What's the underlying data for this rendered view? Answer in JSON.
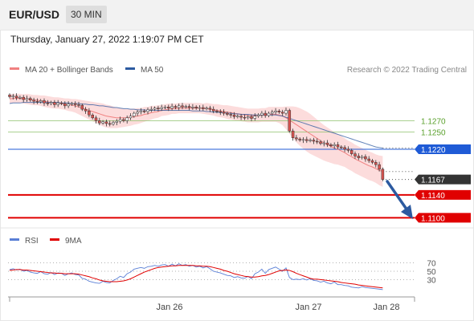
{
  "header": {
    "symbol": "EUR/USD",
    "timeframe": "30 MIN"
  },
  "datetime": "Thursday, January 27, 2022 1:19:07 PM CET",
  "legend": [
    {
      "label": "MA 20 + Bollinger Bands",
      "color": "#f08080"
    },
    {
      "label": "MA 50",
      "color": "#2c5aa0"
    }
  ],
  "credit": "Research © 2022 Trading Central",
  "rsi_legend": [
    {
      "label": "RSI",
      "color": "#5a7fd6"
    },
    {
      "label": "9MA",
      "color": "#e00000"
    }
  ],
  "colors": {
    "up_candle": "#ffffff",
    "down_candle": "#d9534f",
    "wick": "#333333",
    "band_fill": "#fbd0d0",
    "ma20": "#f08080",
    "ma50": "#2c5aa0",
    "support_red": "#e00000",
    "resistance_green": "#8dc26b",
    "pivot_blue": "#1f5bd6",
    "last_price_bg": "#333333",
    "arrow": "#2c5aa0"
  },
  "chart_data": [
    {
      "type": "candlestick",
      "title": "EUR/USD",
      "x_ticks": [
        "Jan 26",
        "Jan 27",
        "Jan 28"
      ],
      "ylim": [
        1.1085,
        1.1345
      ],
      "levels": [
        {
          "value": 1.127,
          "label": "1.1270",
          "style": "green"
        },
        {
          "value": 1.125,
          "label": "1.1250",
          "style": "green"
        },
        {
          "value": 1.122,
          "label": "1.1220",
          "style": "blue"
        },
        {
          "value": 1.1167,
          "label": "1.1167",
          "style": "last"
        },
        {
          "value": 1.114,
          "label": "1.1140",
          "style": "red"
        },
        {
          "value": 1.11,
          "label": "1.1100",
          "style": "red"
        }
      ],
      "close": [
        1.1312,
        1.1313,
        1.131,
        1.1311,
        1.1307,
        1.1309,
        1.1306,
        1.1304,
        1.1303,
        1.1305,
        1.1301,
        1.13,
        1.1302,
        1.1298,
        1.1301,
        1.13,
        1.1296,
        1.1299,
        1.13,
        1.1298,
        1.1297,
        1.129,
        1.1287,
        1.128,
        1.1275,
        1.127,
        1.1266,
        1.1268,
        1.1265,
        1.1264,
        1.1267,
        1.1269,
        1.1272,
        1.127,
        1.1275,
        1.1278,
        1.1283,
        1.1285,
        1.1287,
        1.1286,
        1.1289,
        1.129,
        1.1292,
        1.1291,
        1.1293,
        1.1294,
        1.1292,
        1.1295,
        1.1293,
        1.1296,
        1.1294,
        1.1295,
        1.1293,
        1.1294,
        1.1292,
        1.1293,
        1.1291,
        1.1292,
        1.129,
        1.1287,
        1.1286,
        1.1285,
        1.1283,
        1.1281,
        1.128,
        1.1277,
        1.1278,
        1.1276,
        1.1275,
        1.1277,
        1.1274,
        1.1278,
        1.128,
        1.1283,
        1.1279,
        1.1283,
        1.1285,
        1.1287,
        1.1285,
        1.1283,
        1.1288,
        1.1252,
        1.124,
        1.1238,
        1.1236,
        1.1237,
        1.1235,
        1.1236,
        1.1234,
        1.1233,
        1.123,
        1.1231,
        1.1228,
        1.1226,
        1.1228,
        1.1224,
        1.1223,
        1.122,
        1.1218,
        1.1212,
        1.1208,
        1.1205,
        1.1207,
        1.1203,
        1.12,
        1.1197,
        1.1193,
        1.1185,
        1.1167
      ],
      "ma20": [
        1.1308,
        1.1309,
        1.1309,
        1.1309,
        1.1308,
        1.1308,
        1.1307,
        1.1306,
        1.1306,
        1.1305,
        1.1304,
        1.1303,
        1.1302,
        1.1301,
        1.1301,
        1.13,
        1.1299,
        1.1298,
        1.1297,
        1.1296,
        1.1294,
        1.1292,
        1.129,
        1.1288,
        1.1286,
        1.1284,
        1.1282,
        1.128,
        1.1278,
        1.1277,
        1.1276,
        1.1275,
        1.1275,
        1.1275,
        1.1275,
        1.1276,
        1.1277,
        1.1278,
        1.1279,
        1.1281,
        1.1282,
        1.1284,
        1.1285,
        1.1286,
        1.1288,
        1.1289,
        1.129,
        1.1291,
        1.1291,
        1.1292,
        1.1292,
        1.1292,
        1.1292,
        1.1292,
        1.1292,
        1.1292,
        1.1291,
        1.1291,
        1.129,
        1.1289,
        1.1288,
        1.1287,
        1.1286,
        1.1285,
        1.1284,
        1.1283,
        1.1282,
        1.1281,
        1.128,
        1.1279,
        1.1279,
        1.1279,
        1.1279,
        1.128,
        1.128,
        1.1281,
        1.1281,
        1.1281,
        1.128,
        1.1278,
        1.1275,
        1.1271,
        1.1267,
        1.1263,
        1.1259,
        1.1255,
        1.1251,
        1.1247,
        1.1243,
        1.1239,
        1.1235,
        1.1231,
        1.1228,
        1.1225,
        1.1222,
        1.122,
        1.1217,
        1.1214,
        1.121,
        1.1207,
        1.1203,
        1.12,
        1.1197,
        1.1194,
        1.1191,
        1.1189,
        1.1186,
        1.1183,
        1.1181
      ],
      "ma50": [
        1.13,
        1.1301,
        1.1301,
        1.1301,
        1.1302,
        1.1302,
        1.1302,
        1.1302,
        1.1302,
        1.1302,
        1.1302,
        1.1302,
        1.1302,
        1.1302,
        1.1302,
        1.1301,
        1.1301,
        1.1301,
        1.13,
        1.13,
        1.13,
        1.1299,
        1.1299,
        1.1298,
        1.1298,
        1.1297,
        1.1296,
        1.1296,
        1.1295,
        1.1294,
        1.1293,
        1.1293,
        1.1292,
        1.1291,
        1.1291,
        1.129,
        1.129,
        1.1289,
        1.1289,
        1.1289,
        1.1288,
        1.1288,
        1.1288,
        1.1288,
        1.1288,
        1.1288,
        1.1288,
        1.1288,
        1.1288,
        1.1288,
        1.1288,
        1.1288,
        1.1288,
        1.1287,
        1.1287,
        1.1287,
        1.1287,
        1.1286,
        1.1286,
        1.1285,
        1.1285,
        1.1284,
        1.1284,
        1.1283,
        1.1283,
        1.1282,
        1.1282,
        1.1281,
        1.1281,
        1.1281,
        1.128,
        1.128,
        1.128,
        1.128,
        1.128,
        1.128,
        1.128,
        1.128,
        1.1279,
        1.1278,
        1.1276,
        1.1274,
        1.1272,
        1.127,
        1.1268,
        1.1266,
        1.1264,
        1.1262,
        1.126,
        1.1258,
        1.1256,
        1.1254,
        1.1252,
        1.125,
        1.1248,
        1.1246,
        1.1244,
        1.1242,
        1.124,
        1.1238,
        1.1236,
        1.1234,
        1.1232,
        1.123,
        1.1228,
        1.1226,
        1.1224,
        1.1223,
        1.1222
      ],
      "band_width": [
        0.0008,
        0.0008,
        0.0008,
        0.0008,
        0.0008,
        0.0009,
        0.0009,
        0.0009,
        0.0009,
        0.0009,
        0.001,
        0.001,
        0.001,
        0.001,
        0.001,
        0.001,
        0.001,
        0.0011,
        0.0011,
        0.0012,
        0.0013,
        0.0014,
        0.0015,
        0.0016,
        0.0017,
        0.0018,
        0.0019,
        0.002,
        0.002,
        0.002,
        0.0019,
        0.0018,
        0.0017,
        0.0016,
        0.0015,
        0.0015,
        0.0014,
        0.0014,
        0.0013,
        0.0013,
        0.0012,
        0.0012,
        0.0011,
        0.0011,
        0.001,
        0.001,
        0.001,
        0.0009,
        0.0009,
        0.0009,
        0.0009,
        0.0009,
        0.0009,
        0.0009,
        0.0009,
        0.0009,
        0.0009,
        0.001,
        0.001,
        0.001,
        0.0011,
        0.0011,
        0.0011,
        0.0012,
        0.0012,
        0.0012,
        0.0012,
        0.0012,
        0.0012,
        0.0012,
        0.0012,
        0.0012,
        0.0012,
        0.0012,
        0.0012,
        0.0013,
        0.0013,
        0.0013,
        0.0014,
        0.0016,
        0.002,
        0.0024,
        0.0028,
        0.0031,
        0.0033,
        0.0034,
        0.0035,
        0.0035,
        0.0034,
        0.0033,
        0.0032,
        0.0031,
        0.003,
        0.0029,
        0.0028,
        0.0027,
        0.0026,
        0.0025,
        0.0025,
        0.0025,
        0.0025,
        0.0025,
        0.0025,
        0.0025,
        0.0025,
        0.0025,
        0.0025,
        0.0026,
        0.0027,
        0.0028
      ]
    },
    {
      "type": "line",
      "title": "RSI",
      "ylim": [
        0,
        100
      ],
      "y_ticks": [
        "70",
        "50",
        "30"
      ],
      "series": [
        {
          "name": "RSI",
          "values": [
            54,
            56,
            53,
            55,
            50,
            52,
            48,
            46,
            45,
            49,
            44,
            43,
            47,
            42,
            46,
            45,
            40,
            44,
            46,
            42,
            41,
            33,
            31,
            26,
            24,
            22,
            21,
            26,
            23,
            22,
            28,
            32,
            38,
            35,
            44,
            48,
            55,
            57,
            59,
            57,
            61,
            62,
            64,
            62,
            65,
            66,
            62,
            67,
            63,
            68,
            64,
            66,
            62,
            64,
            60,
            62,
            58,
            61,
            56,
            50,
            48,
            46,
            43,
            40,
            39,
            35,
            37,
            34,
            33,
            38,
            32,
            44,
            48,
            55,
            45,
            54,
            57,
            60,
            55,
            50,
            58,
            35,
            30,
            31,
            30,
            32,
            29,
            32,
            28,
            27,
            24,
            26,
            22,
            20,
            24,
            18,
            18,
            16,
            15,
            12,
            11,
            10,
            13,
            11,
            10,
            9,
            8,
            7,
            6
          ]
        },
        {
          "name": "9MA",
          "values": [
            52,
            53,
            54,
            54,
            53,
            53,
            52,
            51,
            50,
            49,
            48,
            47,
            46,
            46,
            45,
            45,
            44,
            44,
            44,
            44,
            43,
            41,
            39,
            37,
            34,
            32,
            29,
            27,
            26,
            25,
            25,
            25,
            26,
            27,
            29,
            32,
            36,
            40,
            44,
            48,
            51,
            54,
            57,
            59,
            60,
            61,
            62,
            63,
            63,
            64,
            64,
            64,
            64,
            64,
            63,
            63,
            62,
            62,
            61,
            59,
            57,
            55,
            52,
            50,
            47,
            44,
            42,
            40,
            38,
            37,
            36,
            36,
            37,
            39,
            40,
            42,
            45,
            48,
            51,
            52,
            53,
            52,
            49,
            45,
            42,
            39,
            36,
            33,
            31,
            31,
            30,
            29,
            28,
            27,
            26,
            25,
            23,
            22,
            21,
            20,
            19,
            17,
            16,
            15,
            14,
            13,
            12,
            11,
            10
          ]
        }
      ]
    }
  ]
}
